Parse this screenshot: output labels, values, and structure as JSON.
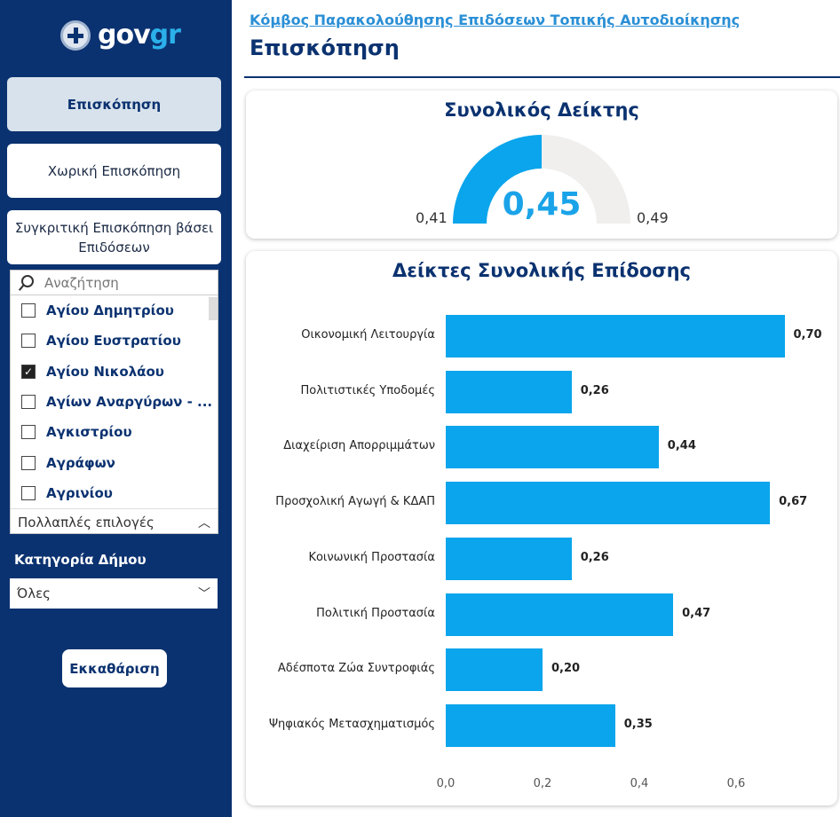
{
  "brand": {
    "logo_text": "gov",
    "logo_accent": "gr"
  },
  "nav": [
    {
      "label": "Επισκόπηση",
      "active": true
    },
    {
      "label": "Χωρική Επισκόπηση"
    },
    {
      "label": "Συγκριτική Επισκόπηση βάσει Επιδόσεων"
    }
  ],
  "slicer": {
    "search_placeholder": "Αναζήτηση",
    "items": [
      {
        "label": "Αγίου Δημητρίου",
        "checked": false
      },
      {
        "label": "Αγίου Ευστρατίου",
        "checked": false
      },
      {
        "label": "Αγίου Νικολάου",
        "checked": true
      },
      {
        "label": "Αγίων Αναργύρων - ...",
        "checked": false
      },
      {
        "label": "Αγκιστρίου",
        "checked": false
      },
      {
        "label": "Αγράφων",
        "checked": false
      },
      {
        "label": "Αγρινίου",
        "checked": false
      }
    ],
    "footer": "Πολλαπλές επιλογές"
  },
  "category": {
    "label": "Κατηγορία Δήμου",
    "value": "Όλες"
  },
  "clear_label": "Εκκαθάριση",
  "header": {
    "breadcrumb": "Κόμβος Παρακολούθησης Επιδόσεων Τοπικής Αυτοδιοίκησης",
    "title": "Επισκόπηση"
  },
  "gauge": {
    "title": "Συνολικός Δείκτης",
    "value": "0,45",
    "min": "0,41",
    "max": "0,49",
    "fraction": 0.5
  },
  "colors": {
    "bar": "#0aa5ec",
    "navy": "#0b3270"
  },
  "chart_data": {
    "type": "bar",
    "orientation": "horizontal",
    "title": "Δείκτες Συνολικής Επίδοσης",
    "categories": [
      "Οικονομική Λειτουργία",
      "Πολιτιστικές Υποδομές",
      "Διαχείριση Απορριμμάτων",
      "Προσχολική Αγωγή & ΚΔΑΠ",
      "Κοινωνική Προστασία",
      "Πολιτική Προστασία",
      "Αδέσποτα Ζώα Συντροφιάς",
      "Ψηφιακός Μετασχηματισμός"
    ],
    "values": [
      0.7,
      0.26,
      0.44,
      0.67,
      0.26,
      0.47,
      0.2,
      0.35
    ],
    "labels": [
      "0,70",
      "0,26",
      "0,44",
      "0,67",
      "0,26",
      "0,47",
      "0,20",
      "0,35"
    ],
    "xticks": [
      "0,0",
      "0,2",
      "0,4",
      "0,6"
    ],
    "xtick_values": [
      0,
      0.2,
      0.4,
      0.6
    ],
    "xlim": [
      0,
      0.75
    ]
  }
}
